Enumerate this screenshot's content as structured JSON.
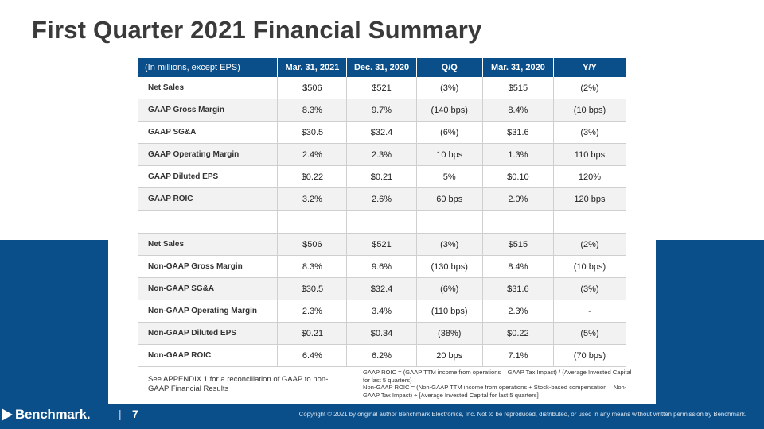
{
  "slide": {
    "title": "First Quarter 2021 Financial Summary",
    "page_number": "7",
    "divider": "|",
    "logo_text": "Benchmark.",
    "copyright": "Copyright © 2021 by original author Benchmark Electronics, Inc. Not to be reproduced, distributed, or used in any means without written permission by Benchmark."
  },
  "table": {
    "headers": [
      "(In millions, except EPS)",
      "Mar. 31, 2021",
      "Dec. 31, 2020",
      "Q/Q",
      "Mar. 31, 2020",
      "Y/Y"
    ],
    "rows": [
      [
        "Net Sales",
        "$506",
        "$521",
        "(3%)",
        "$515",
        "(2%)"
      ],
      [
        "GAAP Gross Margin",
        "8.3%",
        "9.7%",
        "(140 bps)",
        "8.4%",
        "(10 bps)"
      ],
      [
        "GAAP SG&A",
        "$30.5",
        "$32.4",
        "(6%)",
        "$31.6",
        "(3%)"
      ],
      [
        "GAAP Operating Margin",
        "2.4%",
        "2.3%",
        "10 bps",
        "1.3%",
        "110 bps"
      ],
      [
        "GAAP Diluted EPS",
        "$0.22",
        "$0.21",
        "5%",
        "$0.10",
        "120%"
      ],
      [
        "GAAP ROIC",
        "3.2%",
        "2.6%",
        "60 bps",
        "2.0%",
        "120 bps"
      ],
      [
        "",
        "",
        "",
        "",
        "",
        ""
      ],
      [
        "Net Sales",
        "$506",
        "$521",
        "(3%)",
        "$515",
        "(2%)"
      ],
      [
        "Non-GAAP Gross Margin",
        "8.3%",
        "9.6%",
        "(130 bps)",
        "8.4%",
        "(10 bps)"
      ],
      [
        "Non-GAAP SG&A",
        "$30.5",
        "$32.4",
        "(6%)",
        "$31.6",
        "(3%)"
      ],
      [
        "Non-GAAP Operating Margin",
        "2.3%",
        "3.4%",
        "(110 bps)",
        "2.3%",
        "-"
      ],
      [
        "Non-GAAP Diluted EPS",
        "$0.21",
        "$0.34",
        "(38%)",
        "$0.22",
        "(5%)"
      ],
      [
        "Non-GAAP ROIC",
        "6.4%",
        "6.2%",
        "20 bps",
        "7.1%",
        "(70 bps)"
      ]
    ]
  },
  "notes": {
    "left": "See APPENDIX 1 for a reconciliation of GAAP to non-GAAP Financial Results",
    "right_1": "GAAP ROIC = (GAAP TTM income from operations – GAAP Tax Impact) / (Average Invested Capital for last 5 quarters)",
    "right_2": "Non-GAAP ROIC = (Non-GAAP TTM income from operations + Stock-based compensation – Non-GAAP Tax Impact) ÷ [Average Invested Capital for last 5 quarters]"
  },
  "colors": {
    "brand_blue": "#0a4f8a",
    "row_alt": "#f2f2f2"
  }
}
